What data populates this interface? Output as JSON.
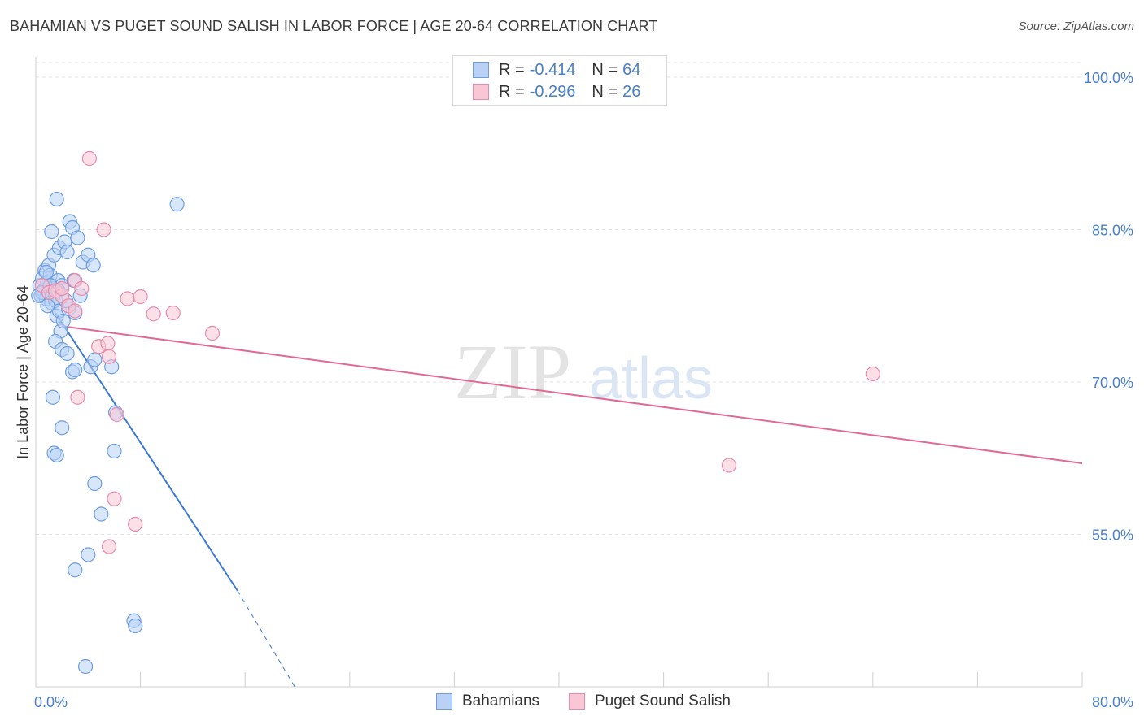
{
  "title": "BAHAMIAN VS PUGET SOUND SALISH IN LABOR FORCE | AGE 20-64 CORRELATION CHART",
  "source": "Source: ZipAtlas.com",
  "legend": {
    "r_label": "R =",
    "n_label": "N =",
    "rows": [
      {
        "r": "-0.414",
        "n": "64",
        "fill": "#b8d1f5",
        "stroke": "#6d9de0"
      },
      {
        "r": "-0.296",
        "n": "26",
        "fill": "#f9c6d6",
        "stroke": "#e88aaa"
      }
    ]
  },
  "watermark": {
    "zip": "ZIP",
    "atlas": "atlas"
  },
  "chart_data": {
    "type": "scatter",
    "xlabel": "",
    "ylabel": "In Labor Force | Age 20-64",
    "xlim": [
      0,
      80
    ],
    "ylim": [
      40,
      102
    ],
    "x_tick_labels": [
      "0.0%",
      "80.0%"
    ],
    "y_ticks": [
      55,
      70,
      85,
      100
    ],
    "y_tick_labels": [
      "55.0%",
      "70.0%",
      "85.0%",
      "100.0%"
    ],
    "grid": true,
    "legend_position": "top-center",
    "series": [
      {
        "name": "Bahamians",
        "color": "#6d9de0",
        "fill": "#b8d1f5",
        "points": [
          [
            0.3,
            79.5
          ],
          [
            0.4,
            78.5
          ],
          [
            0.5,
            80.2
          ],
          [
            0.6,
            79.0
          ],
          [
            0.7,
            81.0
          ],
          [
            0.8,
            78.2
          ],
          [
            0.9,
            79.8
          ],
          [
            1.0,
            81.5
          ],
          [
            1.0,
            78.8
          ],
          [
            1.1,
            80.5
          ],
          [
            1.2,
            77.8
          ],
          [
            1.3,
            79.2
          ],
          [
            1.4,
            82.5
          ],
          [
            1.5,
            78.0
          ],
          [
            1.6,
            76.5
          ],
          [
            1.7,
            80.0
          ],
          [
            1.8,
            77.0
          ],
          [
            1.9,
            75.0
          ],
          [
            2.0,
            79.5
          ],
          [
            2.1,
            76.0
          ],
          [
            1.2,
            84.8
          ],
          [
            1.8,
            83.2
          ],
          [
            2.2,
            83.8
          ],
          [
            2.4,
            82.8
          ],
          [
            2.6,
            85.8
          ],
          [
            2.8,
            85.2
          ],
          [
            3.2,
            84.2
          ],
          [
            3.6,
            81.8
          ],
          [
            4.0,
            82.5
          ],
          [
            4.4,
            81.5
          ],
          [
            1.5,
            74.0
          ],
          [
            2.0,
            73.2
          ],
          [
            2.4,
            72.8
          ],
          [
            2.8,
            71.0
          ],
          [
            3.0,
            71.2
          ],
          [
            4.2,
            71.5
          ],
          [
            4.5,
            72.2
          ],
          [
            1.3,
            68.5
          ],
          [
            2.0,
            65.5
          ],
          [
            1.4,
            63.0
          ],
          [
            1.6,
            62.8
          ],
          [
            5.8,
            71.5
          ],
          [
            6.1,
            67.0
          ],
          [
            6.0,
            63.2
          ],
          [
            4.5,
            60.0
          ],
          [
            5.0,
            57.0
          ],
          [
            4.0,
            53.0
          ],
          [
            3.0,
            51.5
          ],
          [
            7.5,
            46.5
          ],
          [
            7.6,
            46.0
          ],
          [
            3.8,
            42.0
          ],
          [
            1.6,
            88.0
          ],
          [
            10.8,
            87.5
          ],
          [
            2.5,
            77.2
          ],
          [
            3.0,
            76.8
          ],
          [
            0.5,
            78.8
          ],
          [
            0.8,
            80.8
          ],
          [
            1.1,
            79.5
          ],
          [
            0.2,
            78.5
          ],
          [
            1.7,
            79.0
          ],
          [
            2.3,
            78.0
          ],
          [
            3.4,
            78.5
          ],
          [
            0.9,
            77.5
          ],
          [
            2.9,
            80.0
          ]
        ]
      },
      {
        "name": "Puget Sound Salish",
        "color": "#e88aaa",
        "fill": "#f9c6d6",
        "points": [
          [
            4.1,
            92.0
          ],
          [
            5.2,
            85.0
          ],
          [
            0.5,
            79.5
          ],
          [
            1.0,
            78.8
          ],
          [
            1.5,
            79.0
          ],
          [
            2.0,
            78.5
          ],
          [
            2.5,
            77.5
          ],
          [
            3.0,
            80.0
          ],
          [
            3.5,
            79.2
          ],
          [
            7.0,
            78.2
          ],
          [
            8.0,
            78.4
          ],
          [
            9.0,
            76.7
          ],
          [
            10.5,
            76.8
          ],
          [
            13.5,
            74.8
          ],
          [
            4.8,
            73.5
          ],
          [
            5.5,
            73.8
          ],
          [
            5.6,
            72.5
          ],
          [
            3.2,
            68.5
          ],
          [
            6.2,
            66.8
          ],
          [
            6.0,
            58.5
          ],
          [
            7.6,
            56.0
          ],
          [
            5.6,
            53.8
          ],
          [
            64.0,
            70.8
          ],
          [
            53.0,
            61.8
          ],
          [
            2.0,
            79.2
          ],
          [
            3.0,
            77.0
          ]
        ]
      }
    ],
    "trend_lines": [
      {
        "series": "Bahamians",
        "solid_from": [
          1.5,
          76.8
        ],
        "solid_to": [
          15.4,
          49.5
        ],
        "dashed_to": [
          19.8,
          40.0
        ]
      },
      {
        "series": "Puget Sound Salish",
        "from": [
          2.0,
          75.5
        ],
        "to": [
          80.0,
          62.0
        ]
      }
    ]
  }
}
